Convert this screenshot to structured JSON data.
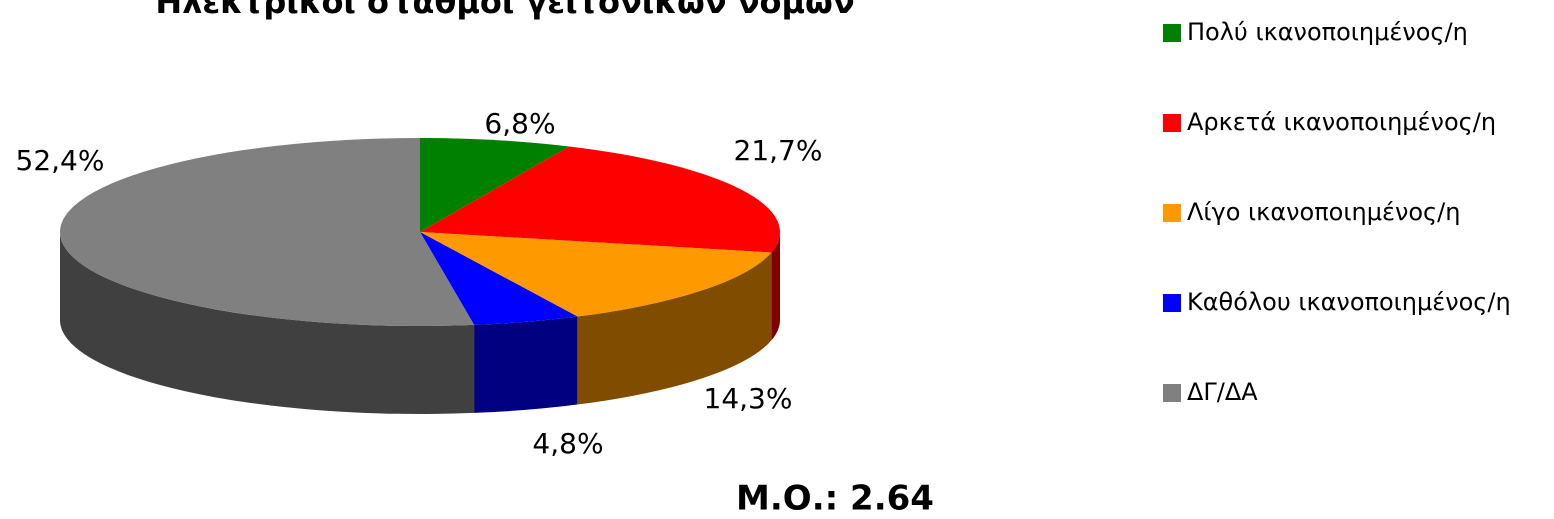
{
  "chart_data": {
    "type": "pie",
    "title": "Ηλεκτρικοί σταθμοί γειτονικών νομών",
    "categories": [
      "Πολύ ικανοποιημένος/η",
      "Αρκετά ικανοποιημένος/η",
      "Λίγο ικανοποιημένος/η",
      "Καθόλου ικανοποιημένος/η",
      "ΔΓ/ΔΑ"
    ],
    "values": [
      6.8,
      21.7,
      14.3,
      4.8,
      52.4
    ],
    "value_labels": [
      "6,8%",
      "21,7%",
      "14,3%",
      "4,8%",
      "52,4%"
    ],
    "colors": [
      "#008000",
      "#ff0000",
      "#ff9900",
      "#0000ff",
      "#808080"
    ],
    "side_colors": [
      "#004000",
      "#800000",
      "#804c00",
      "#000080",
      "#404040"
    ],
    "annotation": "Μ.Ο.: 2.64",
    "legend": "right"
  }
}
